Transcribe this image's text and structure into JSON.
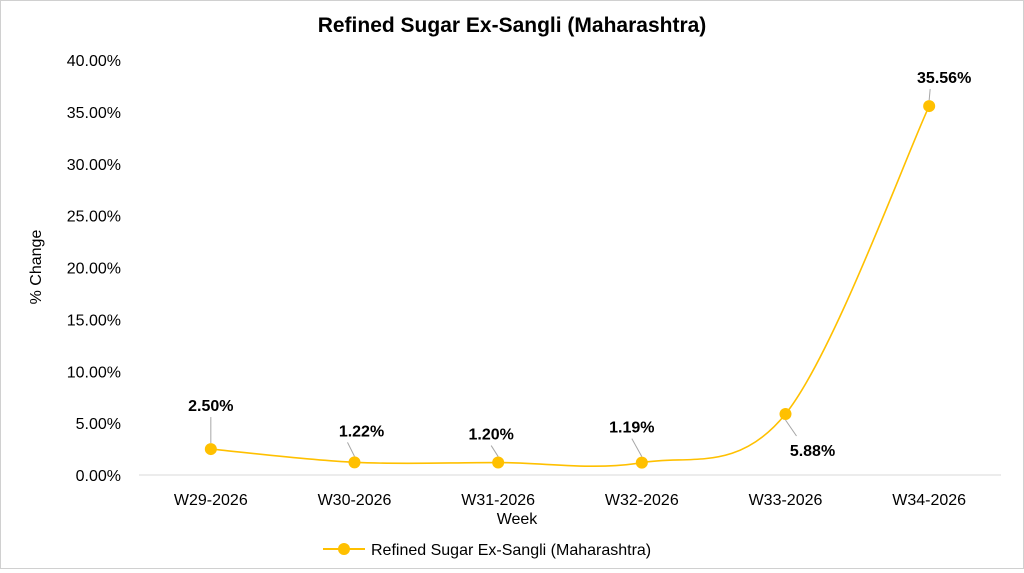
{
  "chart_data": {
    "type": "line",
    "title": "Refined Sugar Ex-Sangli (Maharashtra)",
    "xlabel": "Week",
    "ylabel": "% Change",
    "categories": [
      "W29-2026",
      "W30-2026",
      "W31-2026",
      "W32-2026",
      "W33-2026",
      "W34-2026"
    ],
    "series": [
      {
        "name": "Refined Sugar Ex-Sangli (Maharashtra)",
        "values": [
          2.5,
          1.22,
          1.2,
          1.19,
          5.88,
          35.56
        ],
        "labels": [
          "2.50%",
          "1.22%",
          "1.20%",
          "1.19%",
          "5.88%",
          "35.56%"
        ],
        "color": "#FFC000"
      }
    ],
    "ylim": [
      0,
      40
    ],
    "yticks": [
      "0.00%",
      "5.00%",
      "10.00%",
      "15.00%",
      "20.00%",
      "25.00%",
      "30.00%",
      "35.00%",
      "40.00%"
    ],
    "grid": false,
    "legend": "bottom",
    "smooth": true
  }
}
